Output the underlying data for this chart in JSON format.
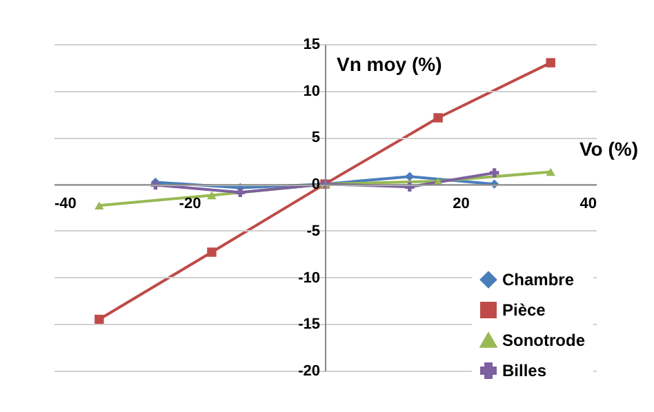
{
  "chart_data": {
    "type": "line",
    "xlabel": "Vo (%)",
    "ylabel": "Vn moy (%)",
    "xlim": [
      -40,
      40
    ],
    "xticks": [
      -40,
      -20,
      20,
      40
    ],
    "ylim": [
      -20,
      15
    ],
    "yticks": [
      -20,
      -15,
      -10,
      -5,
      0,
      5,
      10,
      15
    ],
    "grid": "y",
    "legend": "bottom right",
    "line_style": "solid",
    "series": [
      {
        "name": "Chambre",
        "color": "#4a7ebb",
        "marker": "diamond",
        "x": [
          -25,
          -12.5,
          0,
          12.5,
          25
        ],
        "values": [
          0.2,
          -0.4,
          0,
          0.8,
          0
        ]
      },
      {
        "name": "Pièce",
        "color": "#be4b48",
        "marker": "square",
        "x": [
          -33.3,
          -16.7,
          0,
          16.7,
          33.3
        ],
        "values": [
          -14.5,
          -7.3,
          0,
          7.1,
          13
        ]
      },
      {
        "name": "Sonotrode",
        "color": "#98b954",
        "marker": "triangle",
        "x": [
          -33.3,
          -16.7,
          0,
          16.7,
          33.3
        ],
        "values": [
          -2.3,
          -1.2,
          0,
          0.3,
          1.3
        ]
      },
      {
        "name": "Billes",
        "color": "#7d60a0",
        "marker": "cross",
        "x": [
          -25,
          -12.5,
          0,
          12.5,
          25
        ],
        "values": [
          -0.1,
          -0.9,
          0,
          -0.3,
          1.2
        ]
      }
    ]
  }
}
